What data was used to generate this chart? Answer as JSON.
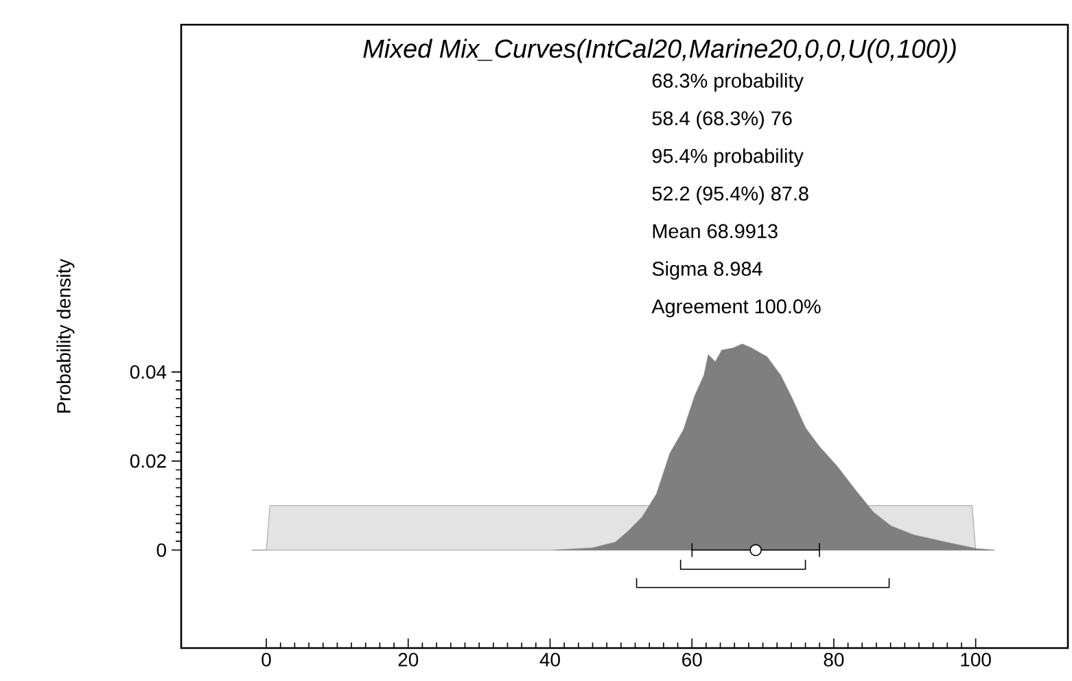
{
  "chart_data": {
    "type": "area",
    "title": "Mixed Mix_Curves(IntCal20,Marine20,0,0,U(0,100))",
    "ylabel": "Probability density",
    "annotations": [
      "68.3% probability",
      "58.4 (68.3%) 76",
      "95.4% probability",
      "52.2 (95.4%) 87.8",
      "Mean 68.9913",
      "Sigma 8.984",
      "Agreement 100.0%"
    ],
    "xlim": [
      -12,
      113
    ],
    "ylim": [
      -0.022,
      0.118
    ],
    "xticks": [
      0,
      20,
      40,
      60,
      80,
      100
    ],
    "yticks": [
      0,
      0.02,
      0.04
    ],
    "series": [
      {
        "color": "#e3e3e3",
        "x": [
          -2,
          0,
          0.5,
          99.5,
          100,
          102
        ],
        "values": [
          0,
          0,
          0.01,
          0.01,
          0,
          0
        ]
      },
      {
        "color": "#7f7f7f",
        "x": [
          40.6,
          46.0,
          49.2,
          51.1,
          53.0,
          55.0,
          56.9,
          58.8,
          60.4,
          61.7,
          62.3,
          63.3,
          64.2,
          65.8,
          67.1,
          68.4,
          70.6,
          72.5,
          74.1,
          76.0,
          77.9,
          80.5,
          83.0,
          85.6,
          88.1,
          91.3,
          95.8,
          100.2,
          102.7
        ],
        "values": [
          0,
          0.0005,
          0.0018,
          0.0044,
          0.0075,
          0.0126,
          0.0218,
          0.027,
          0.0347,
          0.0393,
          0.0439,
          0.0423,
          0.0449,
          0.0454,
          0.0463,
          0.0454,
          0.0434,
          0.0393,
          0.0342,
          0.0275,
          0.0234,
          0.0188,
          0.0136,
          0.0085,
          0.0054,
          0.0034,
          0.0018,
          0.0003,
          0
        ]
      },
      {
        "type": "scatter",
        "color": "#000000",
        "marker": "circle",
        "x": [
          68.9913
        ],
        "values": [
          0
        ],
        "xerrors": [
          8.984
        ]
      },
      {
        "type": "line",
        "color": "#000000",
        "x": [
          58.4,
          58.4,
          76,
          76
        ],
        "values": [
          -0.0022,
          -0.0043,
          -0.0043,
          -0.0022
        ]
      },
      {
        "type": "line",
        "color": "#000000",
        "x": [
          52.2,
          52.2,
          87.8,
          87.8
        ],
        "values": [
          -0.0063,
          -0.0084,
          -0.0084,
          -0.0063
        ]
      }
    ]
  }
}
